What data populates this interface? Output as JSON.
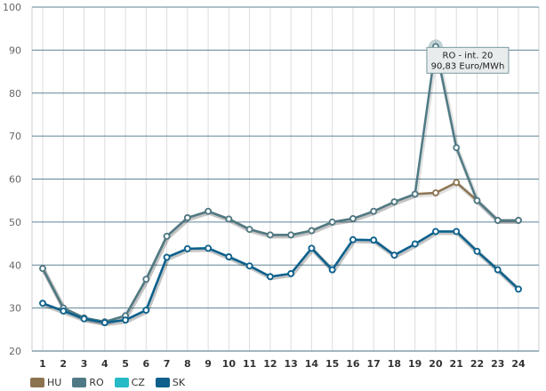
{
  "chart_data": {
    "type": "line",
    "categories": [
      "1",
      "2",
      "3",
      "4",
      "5",
      "6",
      "7",
      "8",
      "9",
      "10",
      "11",
      "12",
      "13",
      "14",
      "15",
      "16",
      "17",
      "18",
      "19",
      "20",
      "21",
      "22",
      "23",
      "24"
    ],
    "ylim": [
      20,
      100
    ],
    "yticks": [
      20,
      30,
      40,
      50,
      60,
      70,
      80,
      90,
      100
    ],
    "grid": true,
    "legend_position": "bottom-left",
    "series": [
      {
        "name": "HU",
        "color": "#8c7350",
        "values": [
          39.2,
          30.0,
          27.7,
          26.8,
          28.2,
          36.7,
          46.7,
          51.0,
          52.5,
          50.7,
          48.3,
          47.0,
          47.0,
          48.0,
          50.0,
          50.8,
          52.5,
          54.7,
          56.5,
          56.8,
          59.2,
          55.0,
          50.4,
          50.4
        ]
      },
      {
        "name": "RO",
        "color": "#4f7a85",
        "values": [
          39.2,
          30.0,
          27.7,
          26.8,
          28.2,
          36.7,
          46.7,
          51.0,
          52.5,
          50.7,
          48.3,
          47.0,
          47.0,
          48.0,
          50.0,
          50.8,
          52.5,
          54.7,
          56.5,
          90.83,
          67.3,
          55.0,
          50.4,
          50.4
        ]
      },
      {
        "name": "CZ",
        "color": "#26b9c6",
        "values": [
          31.1,
          29.3,
          27.5,
          26.6,
          27.2,
          29.5,
          41.8,
          43.8,
          43.9,
          41.9,
          39.8,
          37.3,
          38.0,
          43.9,
          38.9,
          45.9,
          45.8,
          42.3,
          44.9,
          47.8,
          47.8,
          43.2,
          38.9,
          34.4
        ]
      },
      {
        "name": "SK",
        "color": "#0f5f8c",
        "values": [
          31.1,
          29.3,
          27.5,
          26.6,
          27.2,
          29.5,
          41.8,
          43.8,
          43.9,
          41.9,
          39.8,
          37.3,
          38.0,
          43.9,
          38.9,
          45.9,
          45.8,
          42.3,
          44.9,
          47.8,
          47.8,
          43.2,
          38.9,
          34.4
        ]
      }
    ],
    "tooltip": {
      "series": "RO",
      "category_index": 19,
      "line1": "RO - int. 20",
      "line2": "90,83 Euro/MWh"
    }
  }
}
